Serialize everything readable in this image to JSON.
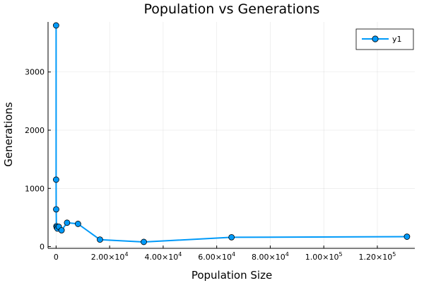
{
  "chart_data": {
    "type": "line",
    "title": "Population vs Generations",
    "xlabel": "Population Size",
    "ylabel": "Generations",
    "xlim": [
      -3000,
      134000
    ],
    "ylim": [
      -30,
      3860
    ],
    "xticks": [
      {
        "value": 0,
        "mantissa": "0",
        "exp": ""
      },
      {
        "value": 20000,
        "mantissa": "2.00×10",
        "exp": "4"
      },
      {
        "value": 40000,
        "mantissa": "4.00×10",
        "exp": "4"
      },
      {
        "value": 60000,
        "mantissa": "6.00×10",
        "exp": "4"
      },
      {
        "value": 80000,
        "mantissa": "8.00×10",
        "exp": "4"
      },
      {
        "value": 100000,
        "mantissa": "1.00×10",
        "exp": "5"
      },
      {
        "value": 120000,
        "mantissa": "1.20×10",
        "exp": "5"
      }
    ],
    "yticks": [
      {
        "value": 0,
        "label": "0"
      },
      {
        "value": 1000,
        "label": "1000"
      },
      {
        "value": 2000,
        "label": "2000"
      },
      {
        "value": 3000,
        "label": "3000"
      }
    ],
    "grid": true,
    "legend_position": "top-right",
    "series": [
      {
        "name": "y1",
        "color": "#009af9",
        "x": [
          2,
          8,
          32,
          128,
          256,
          512,
          1024,
          2048,
          4096,
          8192,
          16384,
          32768,
          65536,
          131072
        ],
        "y": [
          3800,
          1150,
          640,
          350,
          330,
          310,
          340,
          280,
          410,
          390,
          120,
          80,
          160,
          170
        ]
      }
    ]
  }
}
